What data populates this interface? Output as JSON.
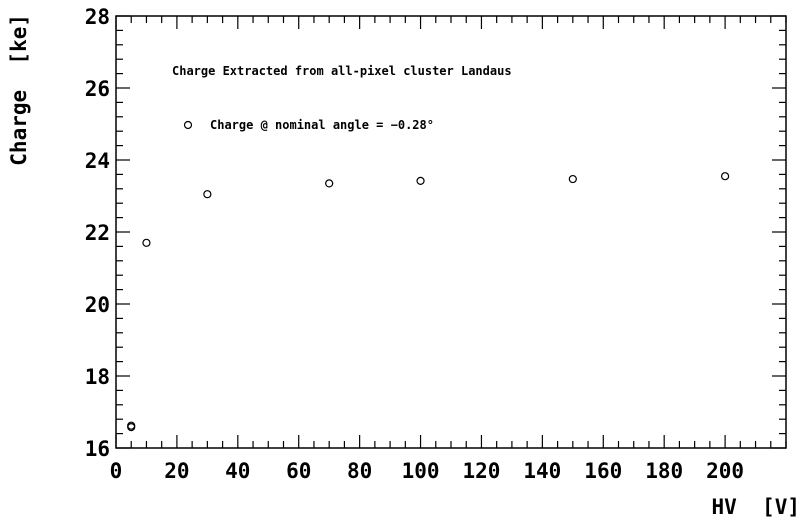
{
  "chart_data": {
    "type": "scatter",
    "title": "",
    "xlabel": "HV  [V]",
    "ylabel": "Charge  [ke]",
    "xlim": [
      0,
      220
    ],
    "ylim": [
      16,
      28
    ],
    "x_ticks": [
      0,
      20,
      40,
      60,
      80,
      100,
      120,
      140,
      160,
      180,
      200
    ],
    "y_ticks": [
      16,
      18,
      20,
      22,
      24,
      26,
      28
    ],
    "grid": false,
    "annotation": "Charge Extracted from all-pixel cluster Landaus",
    "legend_position": "top-left",
    "series": [
      {
        "name": "Charge @ nominal angle = −0.28°",
        "marker": "open-circle",
        "x": [
          5,
          5,
          10,
          30,
          70,
          100,
          150,
          200
        ],
        "y": [
          16.58,
          16.62,
          21.7,
          23.05,
          23.35,
          23.42,
          23.47,
          23.55
        ]
      }
    ]
  }
}
